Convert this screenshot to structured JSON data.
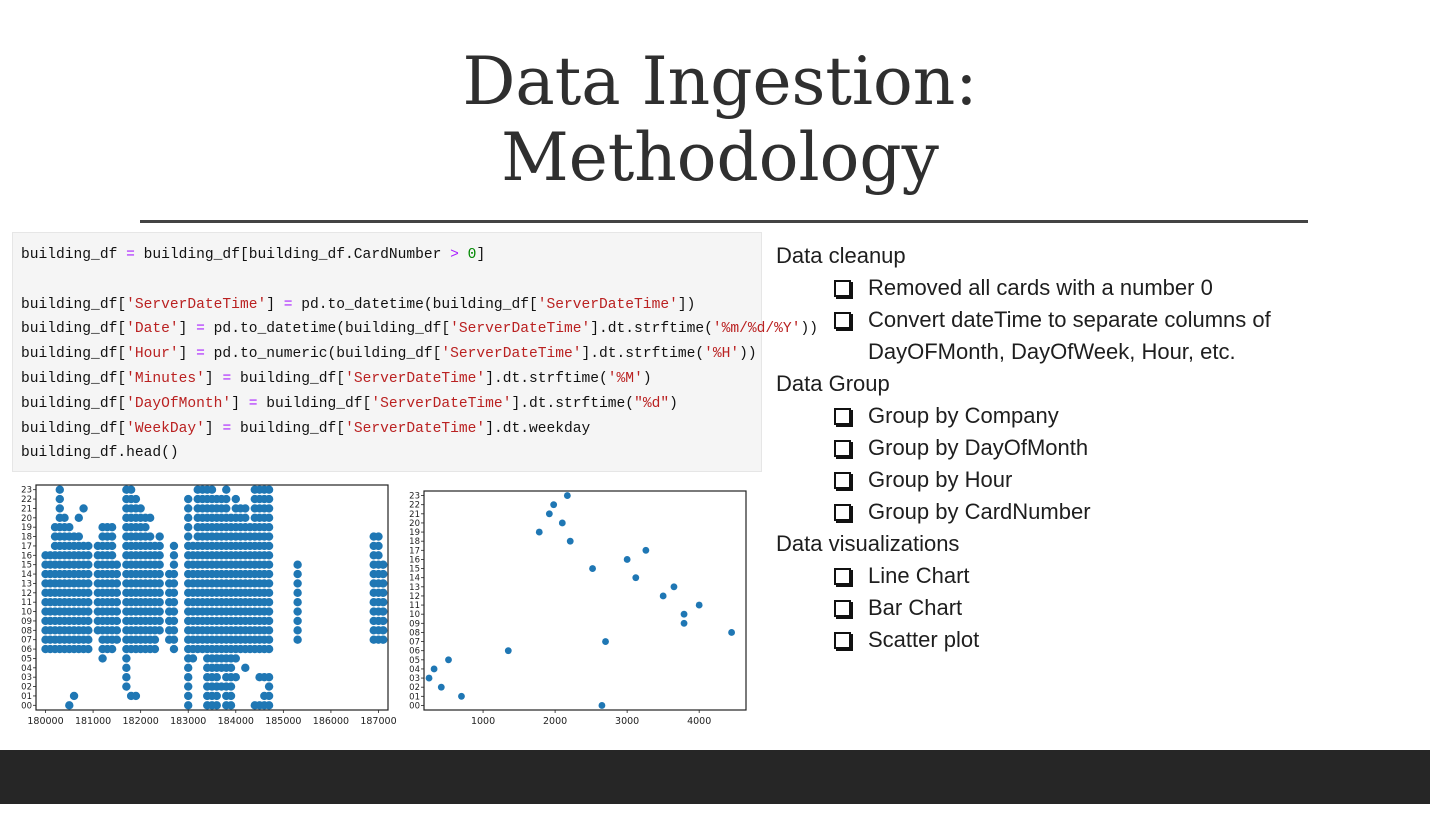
{
  "slide": {
    "title_line1": "Data Ingestion:",
    "title_line2": "Methodology"
  },
  "code": {
    "lines": [
      "building_df = building_df[building_df.CardNumber > 0]",
      "",
      "building_df['ServerDateTime'] = pd.to_datetime(building_df['ServerDateTime'])",
      "building_df['Date'] = pd.to_datetime(building_df['ServerDateTime'].dt.strftime('%m/%d/%Y'))",
      "building_df['Hour'] = pd.to_numeric(building_df['ServerDateTime'].dt.strftime('%H'))",
      "building_df['Minutes'] = building_df['ServerDateTime'].dt.strftime('%M')",
      "building_df['DayOfMonth'] = building_df['ServerDateTime'].dt.strftime(\"%d\")",
      "building_df['WeekDay'] = building_df['ServerDateTime'].dt.weekday",
      "building_df.head()"
    ]
  },
  "bullets": {
    "sections": [
      {
        "heading": "Data cleanup",
        "items": [
          "Removed all cards with a number 0",
          "Convert dateTime to separate columns of",
          "DayOFMonth, DayOfWeek, Hour, etc."
        ]
      },
      {
        "heading": "Data Group",
        "items": [
          "Group by Company",
          "Group by DayOfMonth",
          "Group by Hour",
          "Group by CardNumber"
        ]
      },
      {
        "heading": "Data visualizations",
        "items": [
          "Line Chart",
          "Bar Chart",
          "Scatter plot"
        ]
      }
    ]
  },
  "chart_data": [
    {
      "type": "scatter",
      "color": "#1f77b4",
      "xlim": [
        179800,
        187200
      ],
      "ylim": [
        -0.5,
        23.5
      ],
      "xticks": [
        "180000",
        "181000",
        "182000",
        "183000",
        "184000",
        "185000",
        "186000",
        "187000"
      ],
      "yticks": [
        "00",
        "01",
        "02",
        "03",
        "04",
        "05",
        "06",
        "07",
        "08",
        "09",
        "10",
        "11",
        "12",
        "13",
        "14",
        "15",
        "16",
        "17",
        "18",
        "19",
        "20",
        "21",
        "22",
        "23"
      ],
      "columns": [
        {
          "x": 180000,
          "hours": [
            6,
            7,
            8,
            9,
            10,
            11,
            12,
            13,
            14,
            15,
            16
          ]
        },
        {
          "x": 180100,
          "hours": [
            6,
            7,
            8,
            9,
            10,
            11,
            12,
            13,
            14,
            15,
            16
          ]
        },
        {
          "x": 180200,
          "hours": [
            6,
            7,
            8,
            9,
            10,
            11,
            12,
            13,
            14,
            15,
            16,
            17,
            18,
            19
          ]
        },
        {
          "x": 180300,
          "hours": [
            6,
            7,
            8,
            9,
            10,
            11,
            12,
            13,
            14,
            15,
            16,
            17,
            18,
            19,
            20,
            21,
            22,
            23
          ]
        },
        {
          "x": 180400,
          "hours": [
            6,
            7,
            8,
            9,
            10,
            11,
            12,
            13,
            14,
            15,
            16,
            17,
            18,
            19,
            20
          ]
        },
        {
          "x": 180500,
          "hours": [
            0,
            6,
            7,
            8,
            9,
            10,
            11,
            12,
            13,
            14,
            15,
            16,
            17,
            18,
            19
          ]
        },
        {
          "x": 180600,
          "hours": [
            1,
            6,
            7,
            8,
            9,
            10,
            11,
            12,
            13,
            14,
            15,
            16,
            17,
            18
          ]
        },
        {
          "x": 180700,
          "hours": [
            6,
            7,
            8,
            9,
            10,
            11,
            12,
            13,
            14,
            15,
            16,
            17,
            18,
            20
          ]
        },
        {
          "x": 180800,
          "hours": [
            6,
            7,
            8,
            9,
            10,
            11,
            12,
            13,
            14,
            15,
            16,
            17,
            21
          ]
        },
        {
          "x": 180900,
          "hours": [
            6,
            7,
            8,
            9,
            10,
            11,
            12,
            13,
            14,
            15,
            16,
            17
          ]
        },
        {
          "x": 181100,
          "hours": [
            8,
            9,
            10,
            11,
            12,
            13,
            14,
            15,
            16,
            17
          ]
        },
        {
          "x": 181200,
          "hours": [
            5,
            6,
            7,
            8,
            9,
            10,
            11,
            12,
            13,
            14,
            15,
            16,
            17,
            18,
            19
          ]
        },
        {
          "x": 181300,
          "hours": [
            6,
            7,
            8,
            9,
            10,
            11,
            12,
            13,
            14,
            15,
            16,
            17,
            18,
            19
          ]
        },
        {
          "x": 181400,
          "hours": [
            6,
            7,
            8,
            9,
            10,
            11,
            12,
            13,
            14,
            15,
            16,
            17,
            18,
            19
          ]
        },
        {
          "x": 181500,
          "hours": [
            7,
            8,
            9,
            10,
            11,
            12,
            13,
            14,
            15
          ]
        },
        {
          "x": 181700,
          "hours": [
            2,
            3,
            4,
            5,
            6,
            7,
            8,
            9,
            10,
            11,
            12,
            13,
            14,
            15,
            16,
            17,
            18,
            19,
            20,
            21,
            22,
            23
          ]
        },
        {
          "x": 181800,
          "hours": [
            1,
            6,
            7,
            8,
            9,
            10,
            11,
            12,
            13,
            14,
            15,
            16,
            17,
            18,
            19,
            20,
            21,
            22,
            23
          ]
        },
        {
          "x": 181900,
          "hours": [
            1,
            6,
            7,
            8,
            9,
            10,
            11,
            12,
            13,
            14,
            15,
            16,
            17,
            18,
            19,
            20,
            21,
            22
          ]
        },
        {
          "x": 182000,
          "hours": [
            6,
            7,
            8,
            9,
            10,
            11,
            12,
            13,
            14,
            15,
            16,
            17,
            18,
            19,
            20,
            21
          ]
        },
        {
          "x": 182100,
          "hours": [
            6,
            7,
            8,
            9,
            10,
            11,
            12,
            13,
            14,
            15,
            16,
            17,
            18,
            19,
            20
          ]
        },
        {
          "x": 182200,
          "hours": [
            6,
            7,
            8,
            9,
            10,
            11,
            12,
            13,
            14,
            15,
            16,
            17,
            18,
            20
          ]
        },
        {
          "x": 182300,
          "hours": [
            6,
            7,
            8,
            9,
            10,
            11,
            12,
            13,
            14,
            15,
            16,
            17
          ]
        },
        {
          "x": 182400,
          "hours": [
            8,
            9,
            10,
            11,
            12,
            13,
            14,
            15,
            16,
            17,
            18
          ]
        },
        {
          "x": 182600,
          "hours": [
            7,
            8,
            9,
            10,
            11,
            12,
            13,
            14
          ]
        },
        {
          "x": 182700,
          "hours": [
            6,
            7,
            8,
            9,
            10,
            11,
            12,
            13,
            14,
            15,
            16,
            17
          ]
        },
        {
          "x": 183000,
          "hours": [
            0,
            1,
            2,
            3,
            4,
            5,
            6,
            7,
            8,
            9,
            10,
            11,
            12,
            13,
            14,
            15,
            16,
            17,
            18,
            19,
            20,
            21,
            22
          ]
        },
        {
          "x": 183100,
          "hours": [
            5,
            6,
            7,
            8,
            9,
            10,
            11,
            12,
            13,
            14,
            15,
            16,
            17
          ]
        },
        {
          "x": 183200,
          "hours": [
            6,
            7,
            8,
            9,
            10,
            11,
            12,
            13,
            14,
            15,
            16,
            17,
            18,
            19,
            20,
            21,
            22,
            23
          ]
        },
        {
          "x": 183300,
          "hours": [
            6,
            7,
            8,
            9,
            10,
            11,
            12,
            13,
            14,
            15,
            16,
            17,
            18,
            19,
            20,
            21,
            22,
            23
          ]
        },
        {
          "x": 183400,
          "hours": [
            0,
            1,
            2,
            3,
            4,
            5,
            6,
            7,
            8,
            9,
            10,
            11,
            12,
            13,
            14,
            15,
            16,
            17,
            18,
            19,
            20,
            21,
            22,
            23
          ]
        },
        {
          "x": 183500,
          "hours": [
            0,
            1,
            2,
            3,
            4,
            5,
            6,
            7,
            8,
            9,
            10,
            11,
            12,
            13,
            14,
            15,
            16,
            17,
            18,
            19,
            20,
            21,
            22,
            23
          ]
        },
        {
          "x": 183600,
          "hours": [
            0,
            1,
            2,
            3,
            4,
            5,
            6,
            7,
            8,
            9,
            10,
            11,
            12,
            13,
            14,
            15,
            16,
            17,
            18,
            19,
            20,
            21,
            22
          ]
        },
        {
          "x": 183700,
          "hours": [
            2,
            4,
            5,
            6,
            7,
            8,
            9,
            10,
            11,
            12,
            13,
            14,
            15,
            16,
            17,
            18,
            19,
            20,
            21,
            22
          ]
        },
        {
          "x": 183800,
          "hours": [
            0,
            1,
            2,
            3,
            4,
            5,
            6,
            7,
            8,
            9,
            10,
            11,
            12,
            13,
            14,
            15,
            16,
            17,
            18,
            19,
            20,
            21,
            22,
            23
          ]
        },
        {
          "x": 183900,
          "hours": [
            0,
            1,
            2,
            3,
            4,
            5,
            6,
            7,
            8,
            9,
            10,
            11,
            12,
            13,
            14,
            15,
            16,
            17,
            18,
            19,
            20
          ]
        },
        {
          "x": 184000,
          "hours": [
            3,
            5,
            6,
            7,
            8,
            9,
            10,
            11,
            12,
            13,
            14,
            15,
            16,
            17,
            18,
            19,
            20,
            21,
            22
          ]
        },
        {
          "x": 184100,
          "hours": [
            6,
            7,
            8,
            9,
            10,
            11,
            12,
            13,
            14,
            15,
            16,
            17,
            18,
            19,
            20,
            21
          ]
        },
        {
          "x": 184200,
          "hours": [
            4,
            6,
            7,
            8,
            9,
            10,
            11,
            12,
            13,
            14,
            15,
            16,
            17,
            18,
            19,
            20,
            21
          ]
        },
        {
          "x": 184300,
          "hours": [
            6,
            7,
            8,
            9,
            10,
            11,
            12,
            13,
            14,
            15,
            16,
            17,
            18,
            19
          ]
        },
        {
          "x": 184400,
          "hours": [
            0,
            6,
            7,
            8,
            9,
            10,
            11,
            12,
            13,
            14,
            15,
            16,
            17,
            18,
            19,
            20,
            21,
            22,
            23
          ]
        },
        {
          "x": 184500,
          "hours": [
            0,
            3,
            6,
            7,
            8,
            9,
            10,
            11,
            12,
            13,
            14,
            15,
            16,
            17,
            18,
            19,
            20,
            21,
            22,
            23
          ]
        },
        {
          "x": 184600,
          "hours": [
            0,
            1,
            3,
            6,
            7,
            8,
            9,
            10,
            11,
            12,
            13,
            14,
            15,
            16,
            17,
            18,
            19,
            20,
            21,
            22,
            23
          ]
        },
        {
          "x": 184700,
          "hours": [
            0,
            1,
            2,
            3,
            6,
            7,
            8,
            9,
            10,
            11,
            12,
            13,
            14,
            15,
            16,
            17,
            18,
            19,
            20,
            21,
            22,
            23
          ]
        },
        {
          "x": 185300,
          "hours": [
            7,
            8,
            9,
            10,
            11,
            12,
            13,
            14,
            15
          ]
        },
        {
          "x": 186900,
          "hours": [
            7,
            8,
            9,
            10,
            11,
            12,
            13,
            14,
            15,
            16,
            17,
            18
          ]
        },
        {
          "x": 187000,
          "hours": [
            7,
            8,
            9,
            10,
            11,
            12,
            13,
            14,
            15,
            16,
            17,
            18
          ]
        },
        {
          "x": 187100,
          "hours": [
            7,
            8,
            9,
            10,
            11,
            12,
            13,
            14,
            15
          ]
        }
      ]
    },
    {
      "type": "scatter",
      "color": "#1f77b4",
      "xlim": [
        180,
        4650
      ],
      "ylim": [
        -0.5,
        23.5
      ],
      "xticks": [
        "1000",
        "2000",
        "3000",
        "4000"
      ],
      "yticks": [
        "00",
        "01",
        "02",
        "03",
        "04",
        "05",
        "06",
        "07",
        "08",
        "09",
        "10",
        "11",
        "12",
        "13",
        "14",
        "15",
        "16",
        "17",
        "18",
        "19",
        "20",
        "21",
        "22",
        "23"
      ],
      "points": [
        {
          "x": 250,
          "y": 3
        },
        {
          "x": 320,
          "y": 4
        },
        {
          "x": 420,
          "y": 2
        },
        {
          "x": 520,
          "y": 5
        },
        {
          "x": 700,
          "y": 1
        },
        {
          "x": 1350,
          "y": 6
        },
        {
          "x": 1780,
          "y": 19
        },
        {
          "x": 1920,
          "y": 21
        },
        {
          "x": 1980,
          "y": 22
        },
        {
          "x": 2100,
          "y": 20
        },
        {
          "x": 2170,
          "y": 23
        },
        {
          "x": 2210,
          "y": 18
        },
        {
          "x": 2520,
          "y": 15
        },
        {
          "x": 2650,
          "y": 0
        },
        {
          "x": 2700,
          "y": 7
        },
        {
          "x": 3000,
          "y": 16
        },
        {
          "x": 3120,
          "y": 14
        },
        {
          "x": 3260,
          "y": 17
        },
        {
          "x": 3500,
          "y": 12
        },
        {
          "x": 3650,
          "y": 13
        },
        {
          "x": 3790,
          "y": 10
        },
        {
          "x": 3790,
          "y": 9
        },
        {
          "x": 4000,
          "y": 11
        },
        {
          "x": 4450,
          "y": 8
        }
      ]
    }
  ]
}
